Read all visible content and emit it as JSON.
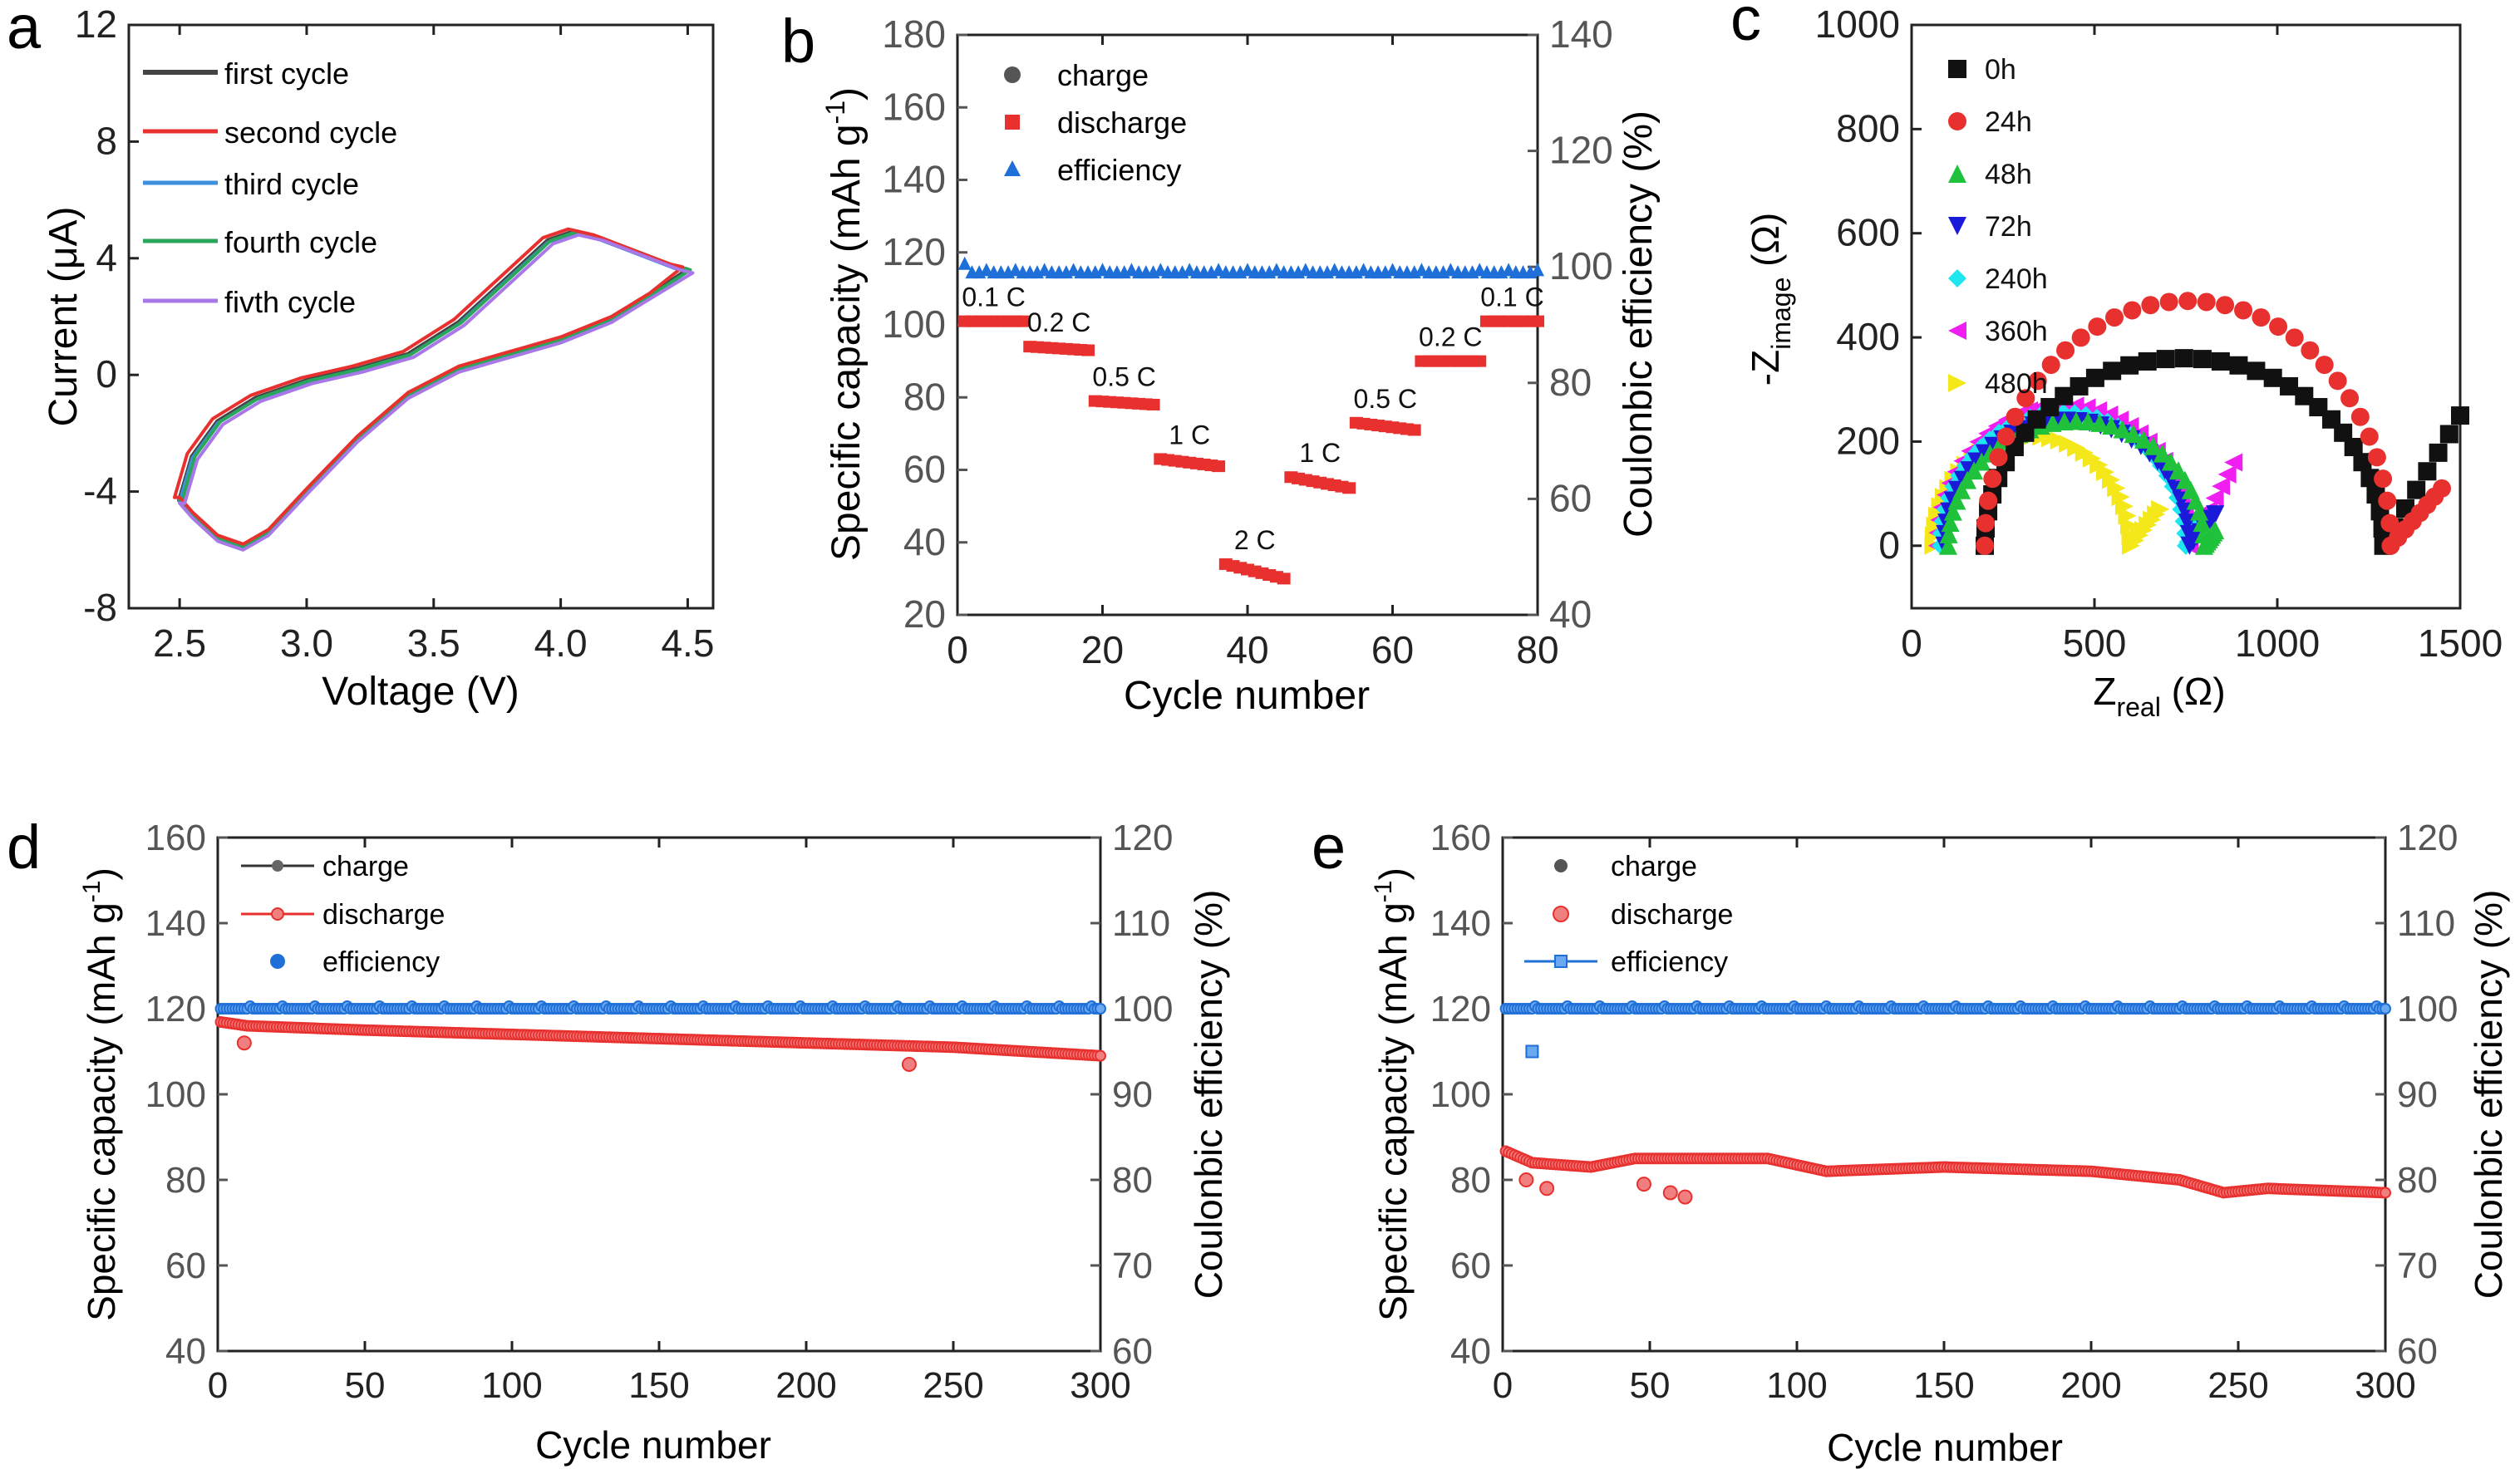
{
  "colors": {
    "black": "#111111",
    "red": "#e8312f",
    "blue": "#1f6fd8",
    "green": "#1fc23a",
    "navy": "#1a1ad8",
    "cyan": "#1ee6f0",
    "magenta": "#f01ef0",
    "yellow": "#f5e81a",
    "axis_gray": "#555555",
    "purple": "#a978e8",
    "cv_blue": "#3b8fdc",
    "cv_green": "#2aa65c"
  },
  "chart_data": [
    {
      "panel": "a",
      "type": "line",
      "title": "",
      "xlabel": "Voltage (V)",
      "ylabel": "Current (μA)",
      "xlim": [
        2.3,
        4.6
      ],
      "ylim": [
        -8,
        12
      ],
      "xticks": [
        "2.5",
        "3.0",
        "3.5",
        "4.0",
        "4.5"
      ],
      "yticks": [
        "-8",
        "-4",
        "0",
        "4",
        "8",
        "12"
      ],
      "legend": [
        "first cycle",
        "second cycle",
        "third cycle",
        "fourth cycle",
        "fivth cycle"
      ],
      "cycle_offsets_uA": [
        0,
        0.1,
        -0.05,
        0,
        -0.1
      ],
      "cycle_voltage_shift_V": [
        0,
        -0.02,
        0,
        0.01,
        0.02
      ],
      "anodic_branch": {
        "x": [
          2.5,
          2.55,
          2.65,
          2.8,
          3.0,
          3.2,
          3.4,
          3.6,
          3.8,
          3.95,
          4.05,
          4.15,
          4.3,
          4.45,
          4.5
        ],
        "y": [
          -4.3,
          -2.8,
          -1.6,
          -0.8,
          -0.2,
          0.2,
          0.7,
          1.8,
          3.4,
          4.6,
          4.9,
          4.7,
          4.2,
          3.7,
          3.6
        ]
      },
      "cathodic_branch": {
        "x": [
          4.5,
          4.35,
          4.2,
          4.0,
          3.8,
          3.6,
          3.4,
          3.2,
          3.0,
          2.85,
          2.75,
          2.65,
          2.55,
          2.5
        ],
        "y": [
          3.6,
          2.7,
          1.9,
          1.2,
          0.7,
          0.2,
          -0.7,
          -2.2,
          -4.0,
          -5.4,
          -5.9,
          -5.6,
          -4.8,
          -4.3
        ]
      }
    },
    {
      "panel": "b",
      "type": "scatter",
      "xlabel": "Cycle number",
      "ylabel": "Specific capacity (mAh g-1)",
      "ylabel_parts": [
        "Specific capacity (mAh g",
        "-1",
        ")"
      ],
      "y2label": "Coulonbic efficiency (%)",
      "xlim": [
        0,
        80
      ],
      "ylim": [
        20,
        180
      ],
      "y2lim": [
        40,
        140
      ],
      "xticks": [
        "0",
        "20",
        "40",
        "60",
        "80"
      ],
      "yticks": [
        "20",
        "40",
        "60",
        "80",
        "100",
        "120",
        "140",
        "160",
        "180"
      ],
      "y2ticks": [
        "40",
        "60",
        "80",
        "100",
        "120",
        "140"
      ],
      "legend": [
        "charge",
        "discharge",
        "efficiency"
      ],
      "rate_segments": [
        {
          "label": "0.1 C",
          "x_start": 1,
          "x_end": 9,
          "capacity_start": 101,
          "capacity_end": 101
        },
        {
          "label": "0.2 C",
          "x_start": 10,
          "x_end": 18,
          "capacity_start": 94,
          "capacity_end": 93
        },
        {
          "label": "0.5 C",
          "x_start": 19,
          "x_end": 27,
          "capacity_start": 79,
          "capacity_end": 78
        },
        {
          "label": "1 C",
          "x_start": 28,
          "x_end": 36,
          "capacity_start": 63,
          "capacity_end": 61
        },
        {
          "label": "2 C",
          "x_start": 37,
          "x_end": 45,
          "capacity_start": 34,
          "capacity_end": 30
        },
        {
          "label": "1 C",
          "x_start": 46,
          "x_end": 54,
          "capacity_start": 58,
          "capacity_end": 55
        },
        {
          "label": "0.5 C",
          "x_start": 55,
          "x_end": 63,
          "capacity_start": 73,
          "capacity_end": 71
        },
        {
          "label": "0.2 C",
          "x_start": 64,
          "x_end": 72,
          "capacity_start": 90,
          "capacity_end": 90
        },
        {
          "label": "0.1 C",
          "x_start": 73,
          "x_end": 80,
          "capacity_start": 101,
          "capacity_end": 101
        }
      ],
      "efficiency_percent": 99
    },
    {
      "panel": "c",
      "type": "scatter",
      "xlabel": "Zreal (Ω)",
      "xlabel_parts": [
        "Z",
        "real",
        " (Ω)"
      ],
      "ylabel": "-Zimage (Ω)",
      "ylabel_parts": [
        "-Z",
        "image",
        " (Ω)"
      ],
      "xlim": [
        0,
        1500
      ],
      "ylim": [
        -120,
        1000
      ],
      "xticks": [
        "0",
        "500",
        "1000",
        "1500"
      ],
      "yticks": [
        "0",
        "200",
        "400",
        "600",
        "800",
        "1000"
      ],
      "legend": [
        "0h",
        "24h",
        "48h",
        "72h",
        "240h",
        "360h",
        "480h"
      ],
      "series": [
        {
          "name": "0h",
          "marker": "square",
          "color": "black",
          "r0": 200,
          "r1": 1290,
          "peak": 360,
          "tail_end": [
            1500,
            250
          ]
        },
        {
          "name": "24h",
          "marker": "circle",
          "color": "red",
          "r0": 200,
          "r1": 1310,
          "peak": 470,
          "tail_end": [
            1450,
            110
          ]
        },
        {
          "name": "48h",
          "marker": "triangle-up",
          "color": "green",
          "r0": 100,
          "r1": 800,
          "peak": 240,
          "tail_end": [
            830,
            30
          ]
        },
        {
          "name": "72h",
          "marker": "triangle-down",
          "color": "navy",
          "r0": 90,
          "r1": 760,
          "peak": 240,
          "tail_end": [
            830,
            60
          ]
        },
        {
          "name": "240h",
          "marker": "diamond",
          "color": "cyan",
          "r0": 80,
          "r1": 750,
          "peak": 255,
          "tail_end": [
            790,
            50
          ]
        },
        {
          "name": "360h",
          "marker": "triangle-left",
          "color": "magenta",
          "r0": 70,
          "r1": 760,
          "peak": 270,
          "tail_end": [
            880,
            160
          ]
        },
        {
          "name": "480h",
          "marker": "triangle-right",
          "color": "yellow",
          "r0": 60,
          "r1": 600,
          "peak": 210,
          "tail_end": [
            680,
            70
          ]
        }
      ]
    },
    {
      "panel": "d",
      "type": "scatter",
      "xlabel": "Cycle number",
      "ylabel": "Specific capacity (mAh g-1)",
      "ylabel_parts": [
        "Specific capacity (mAh g",
        "-1",
        ")"
      ],
      "y2label": "Coulonbic efficiency (%)",
      "xlim": [
        0,
        300
      ],
      "ylim": [
        40,
        160
      ],
      "y2lim": [
        60,
        120
      ],
      "xticks": [
        "0",
        "50",
        "100",
        "150",
        "200",
        "250",
        "300"
      ],
      "yticks": [
        "40",
        "60",
        "80",
        "100",
        "120",
        "140",
        "160"
      ],
      "y2ticks": [
        "60",
        "70",
        "80",
        "90",
        "100",
        "110",
        "120"
      ],
      "legend": [
        "charge",
        "discharge",
        "efficiency"
      ],
      "discharge_trend": {
        "x": [
          0,
          10,
          50,
          100,
          150,
          200,
          250,
          300
        ],
        "y": [
          117,
          116,
          115,
          114,
          113,
          112,
          111,
          109
        ]
      },
      "discharge_outliers": [
        {
          "x": 9,
          "y": 112
        },
        {
          "x": 235,
          "y": 107
        }
      ],
      "efficiency_percent": 100
    },
    {
      "panel": "e",
      "type": "scatter",
      "xlabel": "Cycle number",
      "ylabel": "Specific capacity (mAh g-1)",
      "ylabel_parts": [
        "Specific capacity (mAh g",
        "-1",
        ")"
      ],
      "y2label": "Coulonbic efficiency (%)",
      "xlim": [
        0,
        300
      ],
      "ylim": [
        40,
        160
      ],
      "y2lim": [
        60,
        120
      ],
      "xticks": [
        "0",
        "50",
        "100",
        "150",
        "200",
        "250",
        "300"
      ],
      "yticks": [
        "40",
        "60",
        "80",
        "100",
        "120",
        "140",
        "160"
      ],
      "y2ticks": [
        "60",
        "70",
        "80",
        "90",
        "100",
        "110",
        "120"
      ],
      "legend": [
        "charge",
        "discharge",
        "efficiency"
      ],
      "discharge_trend": {
        "x": [
          0,
          10,
          30,
          45,
          60,
          75,
          90,
          110,
          150,
          200,
          230,
          245,
          260,
          300
        ],
        "y": [
          87,
          84,
          83,
          85,
          85,
          85,
          85,
          82,
          83,
          82,
          80,
          77,
          78,
          77
        ]
      },
      "discharge_outliers": [
        {
          "x": 8,
          "y": 80
        },
        {
          "x": 15,
          "y": 78
        },
        {
          "x": 48,
          "y": 79
        },
        {
          "x": 57,
          "y": 77
        },
        {
          "x": 62,
          "y": 76
        }
      ],
      "efficiency_percent": 100,
      "efficiency_outliers": [
        {
          "x": 10,
          "y": 95
        }
      ]
    }
  ]
}
